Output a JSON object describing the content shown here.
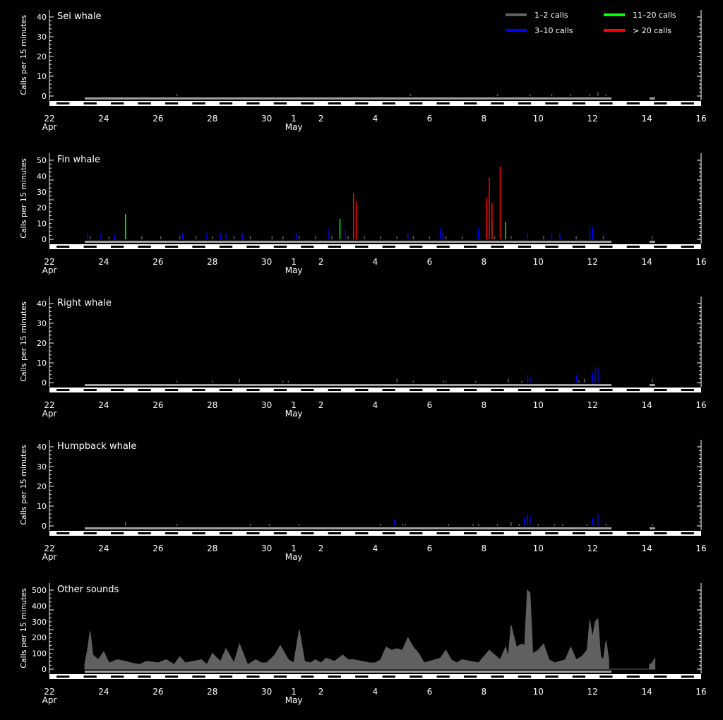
{
  "legend": [
    {
      "label": "1–2 calls",
      "color": "#606060"
    },
    {
      "label": "3–10 calls",
      "color": "#0000ff"
    },
    {
      "label": "11–20 calls",
      "color": "#00ff00"
    },
    {
      "label": "> 20 calls",
      "color": "#ff0000"
    }
  ],
  "x_axis": {
    "ticks": [
      {
        "day": 22,
        "label": "22",
        "sub": "Apr"
      },
      {
        "day": 24,
        "label": "24"
      },
      {
        "day": 26,
        "label": "26"
      },
      {
        "day": 28,
        "label": "28"
      },
      {
        "day": 30,
        "label": "30"
      },
      {
        "day": 31,
        "label": "1",
        "sub": "May"
      },
      {
        "day": 32,
        "label": "2"
      },
      {
        "day": 34,
        "label": "4"
      },
      {
        "day": 36,
        "label": "6"
      },
      {
        "day": 38,
        "label": "8"
      },
      {
        "day": 40,
        "label": "10"
      },
      {
        "day": 42,
        "label": "12"
      },
      {
        "day": 44,
        "label": "14"
      },
      {
        "day": 46,
        "label": "16"
      }
    ]
  },
  "chart_data": [
    {
      "type": "bar",
      "title": "Sei whale",
      "ylabel": "Calls per 15 minutes",
      "ylim": [
        0,
        40
      ],
      "yticks": [
        0,
        10,
        20,
        30,
        40
      ],
      "series": [
        {
          "name": "1–2 calls",
          "color": "#606060",
          "points": [
            [
              26.7,
              1
            ],
            [
              35.3,
              1
            ],
            [
              38.5,
              1
            ],
            [
              39.7,
              1
            ],
            [
              40.5,
              1
            ],
            [
              41.2,
              1
            ],
            [
              41.9,
              1
            ],
            [
              42.2,
              2
            ],
            [
              42.5,
              1
            ]
          ]
        },
        {
          "name": "3–10 calls",
          "color": "#0000ff",
          "points": []
        },
        {
          "name": "11–20 calls",
          "color": "#00ff00",
          "points": []
        },
        {
          "name": "> 20 calls",
          "color": "#ff0000",
          "points": []
        }
      ],
      "coverage": [
        [
          23.3,
          42.7
        ],
        [
          44.1,
          44.3
        ]
      ]
    },
    {
      "type": "bar",
      "title": "Fin whale",
      "ylabel": "Calls per 15 minutes",
      "ylim": [
        0,
        50
      ],
      "yticks": [
        0,
        10,
        20,
        30,
        40,
        50
      ],
      "series": [
        {
          "name": "1–2 calls",
          "color": "#606060",
          "points": [
            [
              23.5,
              2
            ],
            [
              24.2,
              2
            ],
            [
              25.4,
              2
            ],
            [
              26.1,
              2
            ],
            [
              26.8,
              2
            ],
            [
              27.4,
              2
            ],
            [
              28.0,
              2
            ],
            [
              28.8,
              2
            ],
            [
              29.4,
              2
            ],
            [
              30.2,
              2
            ],
            [
              30.6,
              2
            ],
            [
              31.2,
              2
            ],
            [
              31.8,
              2
            ],
            [
              32.4,
              2
            ],
            [
              33.0,
              2
            ],
            [
              33.6,
              2
            ],
            [
              34.2,
              2
            ],
            [
              34.8,
              2
            ],
            [
              35.4,
              2
            ],
            [
              36.0,
              2
            ],
            [
              36.6,
              2
            ],
            [
              37.2,
              2
            ],
            [
              37.8,
              2
            ],
            [
              38.4,
              2
            ],
            [
              39.0,
              2
            ],
            [
              39.6,
              2
            ],
            [
              40.2,
              2
            ],
            [
              40.8,
              2
            ],
            [
              41.4,
              2
            ],
            [
              42.0,
              2
            ],
            [
              42.4,
              2
            ],
            [
              44.2,
              2
            ]
          ]
        },
        {
          "name": "3–10 calls",
          "color": "#0000ff",
          "points": [
            [
              23.4,
              4
            ],
            [
              23.9,
              4
            ],
            [
              24.4,
              3
            ],
            [
              26.9,
              4
            ],
            [
              27.8,
              4
            ],
            [
              28.3,
              4
            ],
            [
              28.5,
              4
            ],
            [
              29.1,
              4
            ],
            [
              31.1,
              4
            ],
            [
              32.3,
              7
            ],
            [
              32.9,
              6
            ],
            [
              33.3,
              7
            ],
            [
              35.2,
              4
            ],
            [
              36.4,
              7
            ],
            [
              36.5,
              5
            ],
            [
              37.8,
              7
            ],
            [
              38.1,
              7
            ],
            [
              39.6,
              4
            ],
            [
              40.5,
              4
            ],
            [
              40.8,
              4
            ],
            [
              41.9,
              8
            ],
            [
              42.0,
              8
            ]
          ]
        },
        {
          "name": "11–20 calls",
          "color": "#00ff00",
          "points": [
            [
              24.8,
              16
            ],
            [
              32.7,
              13
            ],
            [
              38.3,
              12
            ],
            [
              38.8,
              11
            ]
          ]
        },
        {
          "name": "> 20 calls",
          "color": "#ff0000",
          "points": [
            [
              33.2,
              29
            ],
            [
              33.3,
              24
            ],
            [
              38.1,
              26
            ],
            [
              38.2,
              39
            ],
            [
              38.3,
              23
            ],
            [
              38.6,
              46
            ]
          ]
        }
      ],
      "coverage": [
        [
          23.3,
          42.7
        ],
        [
          44.1,
          44.3
        ]
      ]
    },
    {
      "type": "bar",
      "title": "Right whale",
      "ylabel": "Calls per 15 minutes",
      "ylim": [
        0,
        40
      ],
      "yticks": [
        0,
        10,
        20,
        30,
        40
      ],
      "series": [
        {
          "name": "1–2 calls",
          "color": "#606060",
          "points": [
            [
              26.7,
              1
            ],
            [
              28.0,
              1
            ],
            [
              29.0,
              2
            ],
            [
              30.6,
              1
            ],
            [
              30.8,
              1
            ],
            [
              34.8,
              2
            ],
            [
              35.4,
              1
            ],
            [
              36.5,
              1
            ],
            [
              36.6,
              1
            ],
            [
              37.7,
              1
            ],
            [
              38.9,
              2
            ],
            [
              39.4,
              1
            ],
            [
              41.5,
              1
            ],
            [
              41.7,
              2
            ],
            [
              44.2,
              2
            ]
          ]
        },
        {
          "name": "3–10 calls",
          "color": "#0000ff",
          "points": [
            [
              39.6,
              4
            ],
            [
              39.7,
              3
            ],
            [
              41.4,
              4
            ],
            [
              42.0,
              5
            ],
            [
              42.1,
              7
            ],
            [
              42.2,
              8
            ]
          ]
        },
        {
          "name": "11–20 calls",
          "color": "#00ff00",
          "points": []
        },
        {
          "name": "> 20 calls",
          "color": "#ff0000",
          "points": []
        }
      ],
      "coverage": [
        [
          23.3,
          42.7
        ],
        [
          44.1,
          44.3
        ]
      ]
    },
    {
      "type": "bar",
      "title": "Humpback whale",
      "ylabel": "Calls per 15 minutes",
      "ylim": [
        0,
        40
      ],
      "yticks": [
        0,
        10,
        20,
        30,
        40
      ],
      "series": [
        {
          "name": "1–2 calls",
          "color": "#606060",
          "points": [
            [
              24.8,
              2
            ],
            [
              26.7,
              1
            ],
            [
              29.4,
              1
            ],
            [
              30.1,
              1
            ],
            [
              31.2,
              1
            ],
            [
              34.2,
              1
            ],
            [
              35.0,
              1
            ],
            [
              35.1,
              1
            ],
            [
              36.7,
              1
            ],
            [
              37.6,
              1
            ],
            [
              37.8,
              1
            ],
            [
              38.5,
              1
            ],
            [
              39.0,
              2
            ],
            [
              39.3,
              1
            ],
            [
              40.0,
              1
            ],
            [
              40.6,
              1
            ],
            [
              40.9,
              1
            ],
            [
              41.8,
              1
            ],
            [
              42.5,
              1
            ],
            [
              44.2,
              1
            ]
          ]
        },
        {
          "name": "3–10 calls",
          "color": "#0000ff",
          "points": [
            [
              34.7,
              3
            ],
            [
              39.5,
              4
            ],
            [
              39.6,
              6
            ],
            [
              39.7,
              5
            ],
            [
              42.0,
              4
            ],
            [
              42.2,
              6
            ]
          ]
        },
        {
          "name": "11–20 calls",
          "color": "#00ff00",
          "points": []
        },
        {
          "name": "> 20 calls",
          "color": "#ff0000",
          "points": []
        }
      ],
      "coverage": [
        [
          23.3,
          42.7
        ],
        [
          44.1,
          44.3
        ]
      ]
    },
    {
      "type": "area",
      "title": "Other sounds",
      "ylabel": "Calls per 15 minutes",
      "ylim": [
        0,
        500
      ],
      "yticks": [
        0,
        100,
        200,
        300,
        400,
        500
      ],
      "color": "#606060",
      "x": [
        23.3,
        23.4,
        23.5,
        23.6,
        23.8,
        24.0,
        24.2,
        24.5,
        24.8,
        25.0,
        25.3,
        25.6,
        26.0,
        26.3,
        26.6,
        26.8,
        27.0,
        27.3,
        27.6,
        27.8,
        28.0,
        28.3,
        28.5,
        28.8,
        29.0,
        29.3,
        29.6,
        29.8,
        30.0,
        30.3,
        30.5,
        30.8,
        31.0,
        31.2,
        31.4,
        31.6,
        31.8,
        32.0,
        32.2,
        32.5,
        32.8,
        33.0,
        33.2,
        33.5,
        33.8,
        34.0,
        34.2,
        34.4,
        34.6,
        34.8,
        35.0,
        35.2,
        35.4,
        35.6,
        35.8,
        36.0,
        36.2,
        36.4,
        36.6,
        36.8,
        37.0,
        37.2,
        37.5,
        37.8,
        38.0,
        38.2,
        38.4,
        38.6,
        38.8,
        38.9,
        39.0,
        39.2,
        39.4,
        39.5,
        39.6,
        39.7,
        39.8,
        40.0,
        40.2,
        40.4,
        40.6,
        40.8,
        41.0,
        41.2,
        41.4,
        41.6,
        41.8,
        41.9,
        42.0,
        42.1,
        42.2,
        42.3,
        42.4,
        42.5,
        42.6,
        44.1,
        44.2,
        44.3
      ],
      "y": [
        30,
        120,
        240,
        90,
        60,
        110,
        40,
        60,
        50,
        40,
        30,
        50,
        40,
        60,
        30,
        80,
        40,
        50,
        60,
        30,
        100,
        50,
        130,
        40,
        160,
        30,
        60,
        40,
        40,
        90,
        150,
        60,
        40,
        250,
        50,
        40,
        60,
        40,
        70,
        50,
        90,
        60,
        60,
        50,
        40,
        40,
        60,
        140,
        120,
        130,
        120,
        200,
        140,
        100,
        40,
        50,
        60,
        70,
        120,
        60,
        40,
        60,
        50,
        40,
        80,
        120,
        90,
        60,
        140,
        80,
        280,
        140,
        160,
        150,
        500,
        480,
        100,
        120,
        160,
        60,
        40,
        50,
        60,
        140,
        60,
        80,
        120,
        310,
        200,
        300,
        320,
        80,
        60,
        180,
        60,
        30,
        40,
        70
      ]
    }
  ]
}
